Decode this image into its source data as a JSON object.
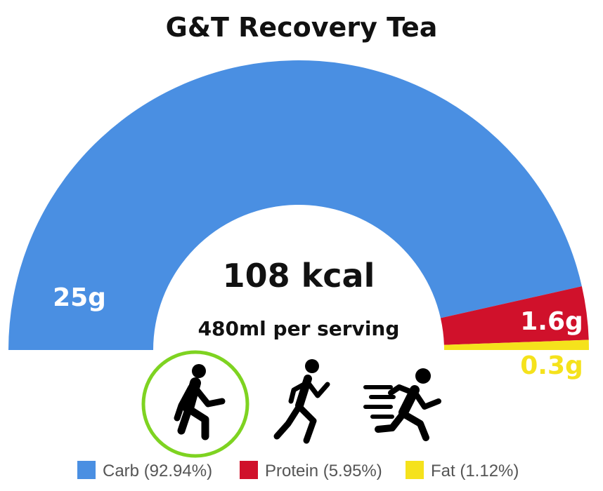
{
  "chart_data": {
    "type": "pie",
    "title": "G&T Recovery Tea",
    "center_value": "108 kcal",
    "center_subtitle": "480ml per serving",
    "series": [
      {
        "name": "Carb",
        "value": 25,
        "label": "25g",
        "percent": 92.94,
        "legend": "Carb (92.94%)",
        "color": "#4a8fe2"
      },
      {
        "name": "Protein",
        "value": 1.6,
        "label": "1.6g",
        "percent": 5.95,
        "legend": "Protein (5.95%)",
        "color": "#d0112b"
      },
      {
        "name": "Fat",
        "value": 0.3,
        "label": "0.3g",
        "percent": 1.12,
        "legend": "Fat (1.12%)",
        "color": "#f5e21c"
      }
    ],
    "legend_position": "bottom"
  },
  "activity_icons": [
    {
      "name": "walking-icon",
      "selected": true,
      "highlight_color": "#7ed321"
    },
    {
      "name": "jogging-icon",
      "selected": false
    },
    {
      "name": "sprinting-icon",
      "selected": false
    }
  ]
}
